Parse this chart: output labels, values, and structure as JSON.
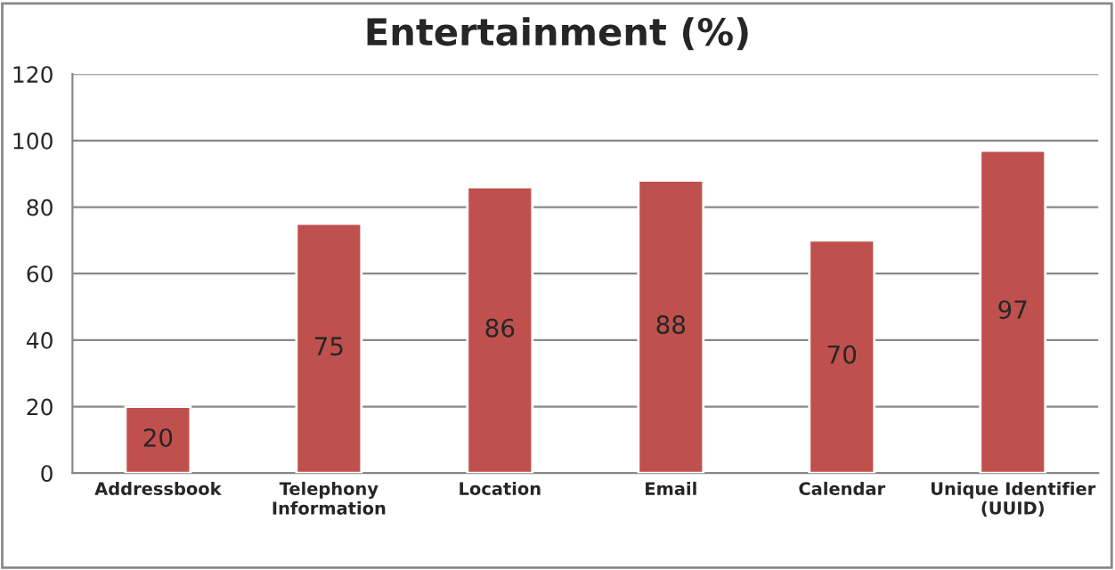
{
  "chart_data": {
    "type": "bar",
    "title": "Entertainment (%)",
    "categories": [
      "Addressbook",
      "Telephony\nInformation",
      "Location",
      "Email",
      "Calendar",
      "Unique Identifier\n(UUID)"
    ],
    "values": [
      20,
      75,
      86,
      88,
      70,
      97
    ],
    "color": "#c0504d",
    "ylim": [
      0,
      120
    ],
    "yticks": [
      0,
      20,
      40,
      60,
      80,
      100,
      120
    ],
    "grid": "y",
    "data_labels": true
  }
}
